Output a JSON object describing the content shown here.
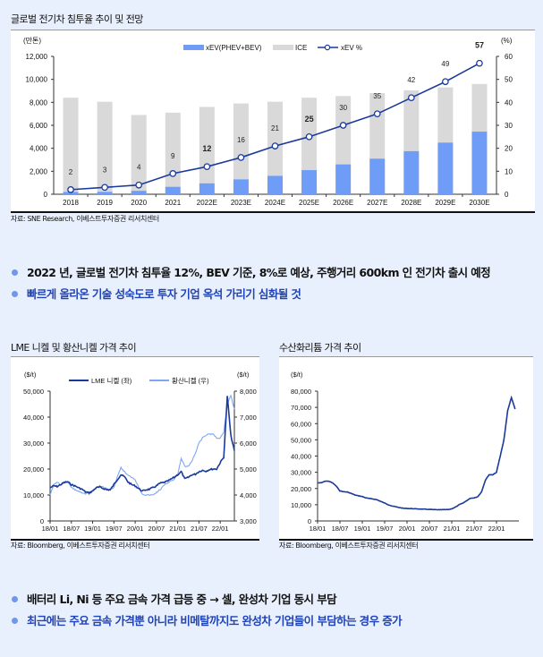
{
  "colors": {
    "xev_bar": "#6e9cf7",
    "ice_bar": "#d9d9d9",
    "xev_line": "#1a3a9c",
    "lme": "#1a3a9c",
    "sulfate": "#7fa6f2",
    "lithium": "#1a3a9c",
    "bullet_dot": "#6f97f0",
    "bullet_blue": "#1f43b8"
  },
  "chart_data": [
    {
      "type": "bar",
      "title": "글로벌 전기차 침투율 추이 및 전망",
      "ylabel_left": "(만톤)",
      "ylabel_right": "(%)",
      "ylim_left": [
        0,
        12000
      ],
      "ylim_right": [
        0,
        60
      ],
      "yticks_left": [
        "0",
        "2,000",
        "4,000",
        "6,000",
        "8,000",
        "10,000",
        "12,000"
      ],
      "yticks_right": [
        "0",
        "10",
        "20",
        "30",
        "40",
        "50",
        "60"
      ],
      "categories": [
        "2018",
        "2019",
        "2020",
        "2021",
        "2022E",
        "2023E",
        "2024E",
        "2025E",
        "2026E",
        "2027E",
        "2028E",
        "2029E",
        "2030E"
      ],
      "legend_placement": "top-center",
      "series": [
        {
          "name": "xEV(PHEV+BEV)",
          "kind": "bar-stacked",
          "values": [
            200,
            210,
            300,
            650,
            950,
            1300,
            1600,
            2100,
            2600,
            3100,
            3750,
            4500,
            5450
          ]
        },
        {
          "name": "ICE",
          "kind": "bar-stacked",
          "values": [
            8200,
            7840,
            6600,
            6450,
            6650,
            6600,
            6450,
            6300,
            5950,
            5700,
            5300,
            4800,
            4150
          ]
        },
        {
          "name": "xEV %",
          "kind": "line",
          "axis": "right",
          "values": [
            2,
            3,
            4,
            9,
            12,
            16,
            21,
            25,
            30,
            35,
            42,
            49,
            57
          ],
          "labels": [
            "2",
            "3",
            "4",
            "9",
            "12",
            "16",
            "21",
            "25",
            "30",
            "35",
            "42",
            "49",
            "57"
          ]
        }
      ],
      "source": "자료: SNE Research, 이베스트투자증권 리서치센터"
    },
    {
      "type": "line",
      "title": "LME 니켈 및 황산니켈 가격 추이",
      "ylabel_left": "($/t)",
      "ylabel_right": "($/t)",
      "ylim_left": [
        0,
        50000
      ],
      "ylim_right": [
        3000,
        8000
      ],
      "yticks_left": [
        "0",
        "10,000",
        "20,000",
        "30,000",
        "40,000",
        "50,000"
      ],
      "yticks_right": [
        "3,000",
        "4,000",
        "5,000",
        "6,000",
        "7,000",
        "8,000"
      ],
      "xticks": [
        "18/01",
        "18/07",
        "19/01",
        "19/07",
        "20/01",
        "20/07",
        "21/01",
        "21/07",
        "22/01"
      ],
      "x_start": "18/01",
      "legend_placement": "top-center",
      "series": [
        {
          "name": "LME 니켈 (좌)",
          "axis": "left",
          "values": [
            12800,
            13500,
            13300,
            14000,
            14800,
            15000,
            14000,
            13500,
            12800,
            12200,
            11200,
            10800,
            11500,
            12800,
            13000,
            12500,
            12000,
            12000,
            14000,
            16000,
            17800,
            17000,
            15000,
            14000,
            13500,
            12500,
            11500,
            12000,
            12200,
            12800,
            13500,
            14500,
            14800,
            15200,
            16000,
            16800,
            17800,
            19000,
            16200,
            16800,
            17800,
            18000,
            19000,
            19500,
            19200,
            19800,
            20000,
            20000,
            22500,
            24500,
            48000,
            33000,
            27000
          ]
        },
        {
          "name": "황산니켈 (우)",
          "axis": "right",
          "values": [
            4000,
            4400,
            4500,
            4400,
            4500,
            4500,
            4300,
            4200,
            4150,
            4100,
            4050,
            4100,
            4150,
            4300,
            4350,
            4300,
            4250,
            4200,
            4300,
            4700,
            5050,
            4900,
            4750,
            4700,
            4600,
            4300,
            4050,
            4000,
            4000,
            4000,
            4100,
            4200,
            4350,
            4450,
            4550,
            4600,
            4800,
            5400,
            5100,
            5100,
            5300,
            5600,
            6000,
            6200,
            6300,
            6350,
            6350,
            6200,
            6200,
            6400,
            7500,
            7850,
            7300
          ]
        }
      ],
      "source": "자료: Bloomberg, 이베스트투자증권 리서치센터"
    },
    {
      "type": "line",
      "title": "수산화리튬 가격 추이",
      "ylabel_left": "($/t)",
      "ylim_left": [
        0,
        80000
      ],
      "yticks_left": [
        "0",
        "10,000",
        "20,000",
        "30,000",
        "40,000",
        "50,000",
        "60,000",
        "70,000",
        "80,000"
      ],
      "xticks": [
        "18/01",
        "18/07",
        "19/01",
        "19/07",
        "20/01",
        "20/07",
        "21/01",
        "21/07",
        "22/01"
      ],
      "x_start": "18/01",
      "series": [
        {
          "name": "수산화리튬",
          "axis": "left",
          "values": [
            23500,
            23500,
            24500,
            24500,
            23500,
            21500,
            18500,
            18000,
            17800,
            17000,
            16000,
            15500,
            15000,
            14200,
            13800,
            13500,
            13000,
            12000,
            11000,
            10000,
            9200,
            8700,
            8200,
            7800,
            7700,
            7600,
            7500,
            7400,
            7300,
            7200,
            7100,
            7000,
            6900,
            6900,
            7000,
            7000,
            7500,
            8500,
            10000,
            11000,
            12500,
            14000,
            14200,
            15000,
            18000,
            25000,
            28500,
            28500,
            30000,
            40000,
            50000,
            68000,
            76000,
            69000
          ]
        }
      ],
      "source": "자료: Bloomberg, 이베스트투자증권 리서치센터"
    }
  ],
  "bullets_1": [
    {
      "text": "2022 년, 글로벌 전기차 침투율 12%, BEV 기준, 8%로 예상, 주행거리 600km 인 전기차 출시 예정"
    },
    {
      "text": "빠르게 올라온 기술 성숙도로 투자 기업 옥석 가리기 심화될 것"
    }
  ],
  "bullets_2": [
    {
      "text": "배터리 Li, Ni 등 주요 금속 가격 급등 중 → 셀, 완성차 기업 동시 부담"
    },
    {
      "text": "최근에는 주요 금속 가격뿐 아니라 비메탈까지도 완성차 기업들이 부담하는 경우 증가"
    }
  ]
}
